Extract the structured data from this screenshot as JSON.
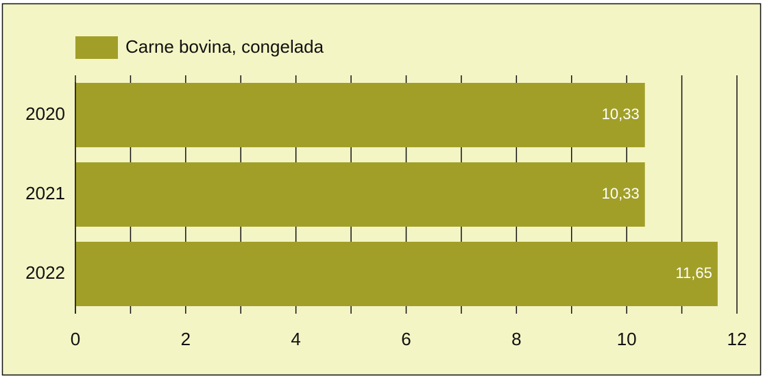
{
  "chart_data": {
    "type": "barh",
    "categories": [
      "2020",
      "2021",
      "2022"
    ],
    "series": [
      {
        "name": "Carne bovina, congelada",
        "color": "#a19f28",
        "values": [
          10.33,
          10.33,
          11.65
        ],
        "value_labels": [
          "10,33",
          "10,33",
          "11,65"
        ]
      }
    ],
    "xlim": [
      0,
      12
    ],
    "xticks": [
      0,
      2,
      4,
      6,
      8,
      10,
      12
    ],
    "xminorticks": [
      1,
      3,
      5,
      7,
      9,
      11
    ],
    "grid": true,
    "legend": "top-left"
  }
}
